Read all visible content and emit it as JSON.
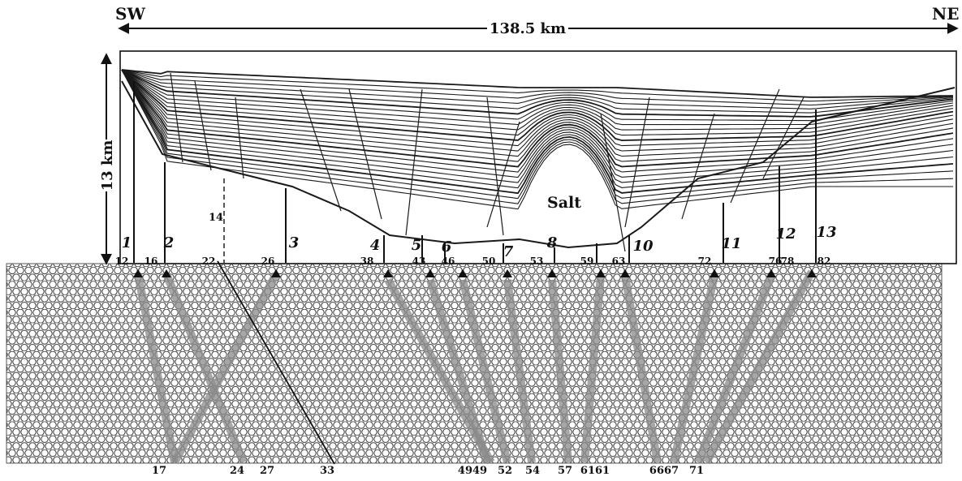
{
  "header": {
    "left_label": "SW",
    "right_label": "NE",
    "width_label": "138.5 km"
  },
  "section": {
    "depth_label": "13 km",
    "salt_label": "Salt",
    "dashed_fault_label": "14"
  },
  "fault_labels": [
    "1",
    "2",
    "3",
    "4",
    "5",
    "6",
    "7",
    "8",
    "10",
    "11",
    "12",
    "13"
  ],
  "top_labels": [
    "12",
    "16",
    "22",
    "26",
    "38",
    "43",
    "46",
    "50",
    "53",
    "59",
    "63",
    "72",
    "76",
    "78",
    "82"
  ],
  "bottom_labels": [
    "17",
    "24",
    "27",
    "33",
    "4949",
    "52",
    "54",
    "57",
    "6161",
    "6667",
    "71"
  ],
  "colors": {
    "line": "#1a1a1a",
    "hex": "#333333",
    "strip": "#8a8a8a"
  }
}
